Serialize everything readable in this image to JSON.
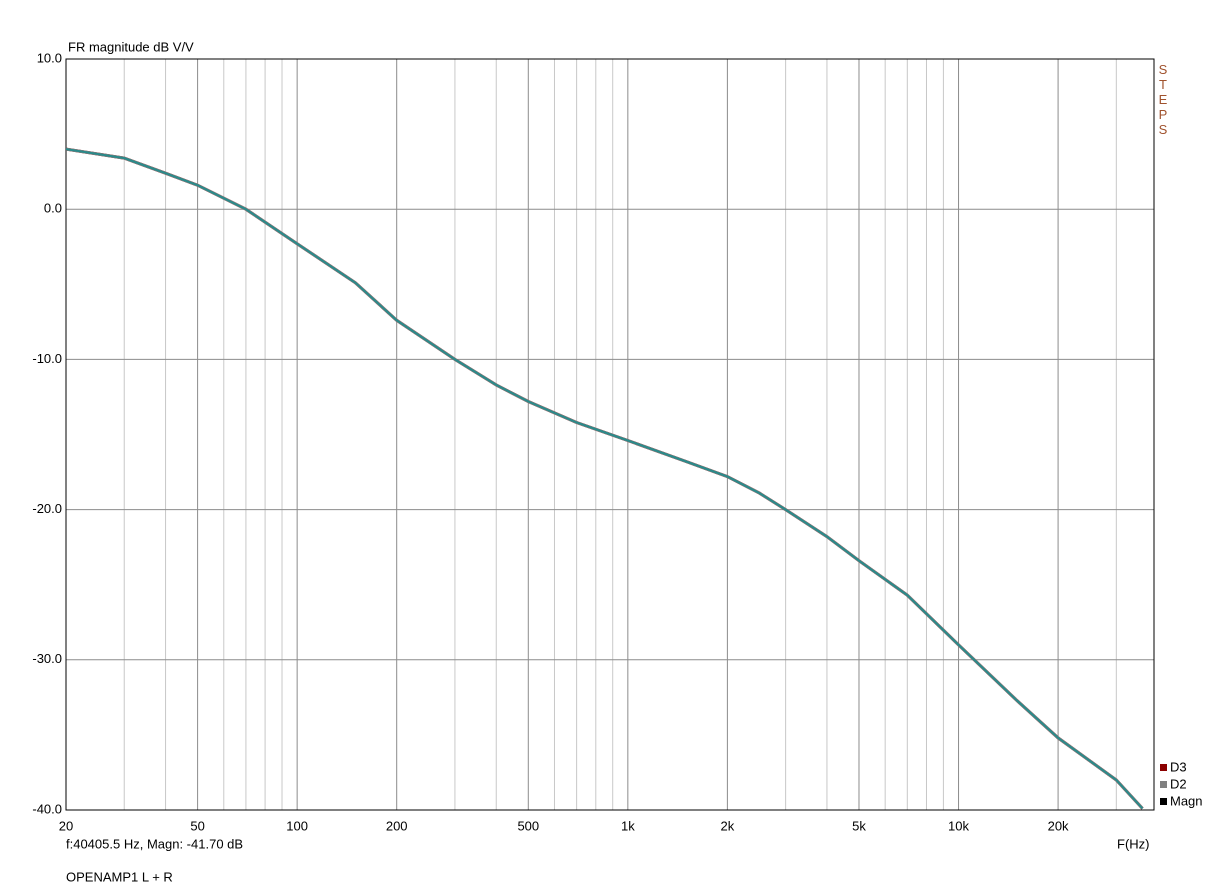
{
  "chart_data": {
    "type": "line",
    "title": "FR magnitude dB V/V",
    "side_label": "STEPS",
    "x_label": "F(Hz)",
    "cursor_readout": "f:40405.5 Hz, Magn: -41.70 dB",
    "footer": "OPENAMP1 L + R",
    "x_scale": "log",
    "grid": true,
    "legend_position": "bottom-right",
    "trace_color": "#2a8a8a",
    "xlim": [
      20,
      39000
    ],
    "ylim": [
      -40,
      10
    ],
    "xticks": [
      20,
      50,
      100,
      200,
      500,
      {
        "value": 1000,
        "label": "1k"
      },
      {
        "value": 2000,
        "label": "2k"
      },
      {
        "value": 5000,
        "label": "5k"
      },
      {
        "value": 10000,
        "label": "10k"
      },
      {
        "value": 20000,
        "label": "20k"
      }
    ],
    "minor_xticks": [
      30,
      40,
      60,
      70,
      80,
      90,
      300,
      400,
      600,
      700,
      800,
      900,
      3000,
      4000,
      6000,
      7000,
      8000,
      9000,
      30000
    ],
    "yticks": [
      {
        "value": 10,
        "label": "10.0"
      },
      {
        "value": 0,
        "label": "0.0"
      },
      {
        "value": -10,
        "label": "-10.0"
      },
      {
        "value": -20,
        "label": "-20.0"
      },
      {
        "value": -30,
        "label": "-30.0"
      },
      {
        "value": -40,
        "label": "-40.0"
      }
    ],
    "x": [
      20,
      30,
      40,
      50,
      70,
      100,
      150,
      200,
      300,
      400,
      500,
      700,
      1000,
      1500,
      2000,
      2500,
      3000,
      4000,
      5000,
      7000,
      10000,
      15000,
      20000,
      30000,
      36000
    ],
    "series": [
      {
        "name": "D3",
        "color": "#8b0000",
        "values": [
          4.0,
          3.4,
          2.4,
          1.6,
          0.0,
          -2.3,
          -4.9,
          -7.4,
          -10.0,
          -11.7,
          -12.8,
          -14.2,
          -15.4,
          -16.8,
          -17.8,
          -18.9,
          -20.0,
          -21.8,
          -23.4,
          -25.7,
          -29.0,
          -32.7,
          -35.2,
          -38.0,
          -39.9
        ]
      },
      {
        "name": "D2",
        "color": "#808080",
        "values": [
          4.0,
          3.4,
          2.4,
          1.6,
          0.0,
          -2.3,
          -4.9,
          -7.4,
          -10.0,
          -11.7,
          -12.8,
          -14.2,
          -15.4,
          -16.8,
          -17.8,
          -18.9,
          -20.0,
          -21.8,
          -23.4,
          -25.7,
          -29.0,
          -32.7,
          -35.2,
          -38.0,
          -39.9
        ]
      },
      {
        "name": "Magn",
        "color": "#000000",
        "values": [
          4.0,
          3.4,
          2.4,
          1.6,
          0.0,
          -2.3,
          -4.9,
          -7.4,
          -10.0,
          -11.7,
          -12.8,
          -14.2,
          -15.4,
          -16.8,
          -17.8,
          -18.9,
          -20.0,
          -21.8,
          -23.4,
          -25.7,
          -29.0,
          -32.7,
          -35.2,
          -38.0,
          -39.9
        ]
      }
    ]
  }
}
